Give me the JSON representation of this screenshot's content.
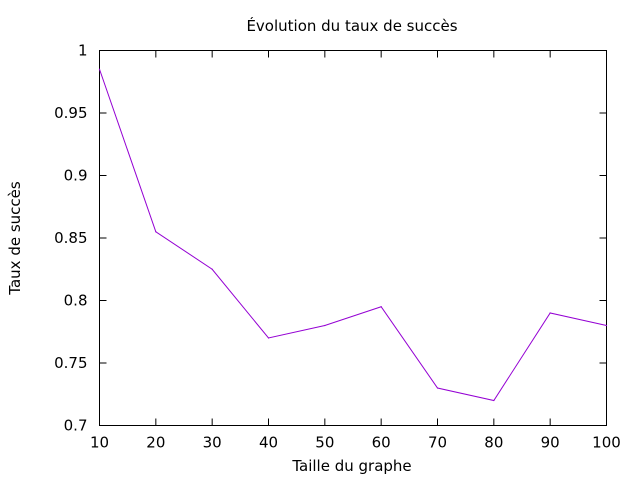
{
  "chart_data": {
    "type": "line",
    "title": "Évolution du taux de succès",
    "xlabel": "Taille du graphe",
    "ylabel": "Taux de succès",
    "xlim": [
      10,
      100
    ],
    "ylim": [
      0.7,
      1
    ],
    "xticks": [
      10,
      20,
      30,
      40,
      50,
      60,
      70,
      80,
      90,
      100
    ],
    "yticks": [
      "0.7",
      "0.75",
      "0.8",
      "0.85",
      "0.9",
      "0.95",
      "1"
    ],
    "grid": false,
    "legend": "none",
    "series": [
      {
        "color": "#9400d3",
        "x": [
          10,
          20,
          30,
          40,
          50,
          60,
          70,
          80,
          90,
          100
        ],
        "y": [
          0.985,
          0.855,
          0.825,
          0.77,
          0.78,
          0.795,
          0.73,
          0.72,
          0.79,
          0.78
        ]
      }
    ]
  }
}
